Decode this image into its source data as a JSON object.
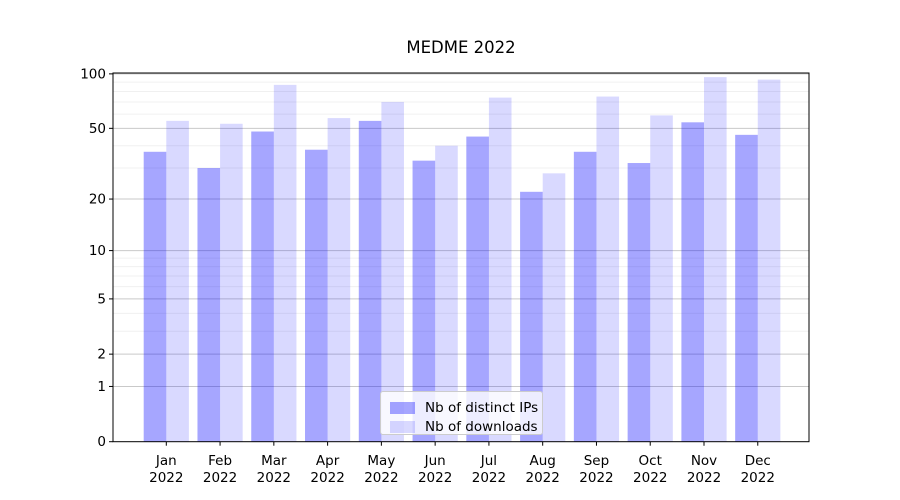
{
  "figure": {
    "title": "MEDME 2022"
  },
  "legend": {
    "items": [
      {
        "label": "Nb of distinct IPs",
        "color": "rgba(0,0,255,0.35)"
      },
      {
        "label": "Nb of downloads",
        "color": "rgba(0,0,255,0.15)"
      }
    ]
  },
  "chart_data": {
    "type": "bar",
    "title": "MEDME 2022",
    "categories": [
      "Jan 2022",
      "Feb 2022",
      "Mar 2022",
      "Apr 2022",
      "May 2022",
      "Jun 2022",
      "Jul 2022",
      "Aug 2022",
      "Sep 2022",
      "Oct 2022",
      "Nov 2022",
      "Dec 2022"
    ],
    "series": [
      {
        "name": "Nb of distinct IPs",
        "color": "rgba(0,0,255,0.35)",
        "values": [
          37,
          30,
          48,
          38,
          55,
          33,
          45,
          22,
          37,
          32,
          54,
          46
        ]
      },
      {
        "name": "Nb of downloads",
        "color": "rgba(0,0,255,0.15)",
        "values": [
          55,
          53,
          87,
          57,
          70,
          40,
          74,
          28,
          75,
          59,
          96,
          93
        ]
      }
    ],
    "xlabel": "",
    "ylabel": "",
    "yscale": "symlog_ln(1+x)",
    "ylim": [
      0,
      101
    ],
    "y_ticks": [
      0,
      1,
      2,
      5,
      10,
      20,
      50,
      100
    ],
    "y_minor_gridlines": [
      3,
      4,
      6,
      7,
      8,
      9,
      30,
      40,
      60,
      70,
      80,
      90
    ],
    "grid": true,
    "legend_position": "lower center"
  }
}
